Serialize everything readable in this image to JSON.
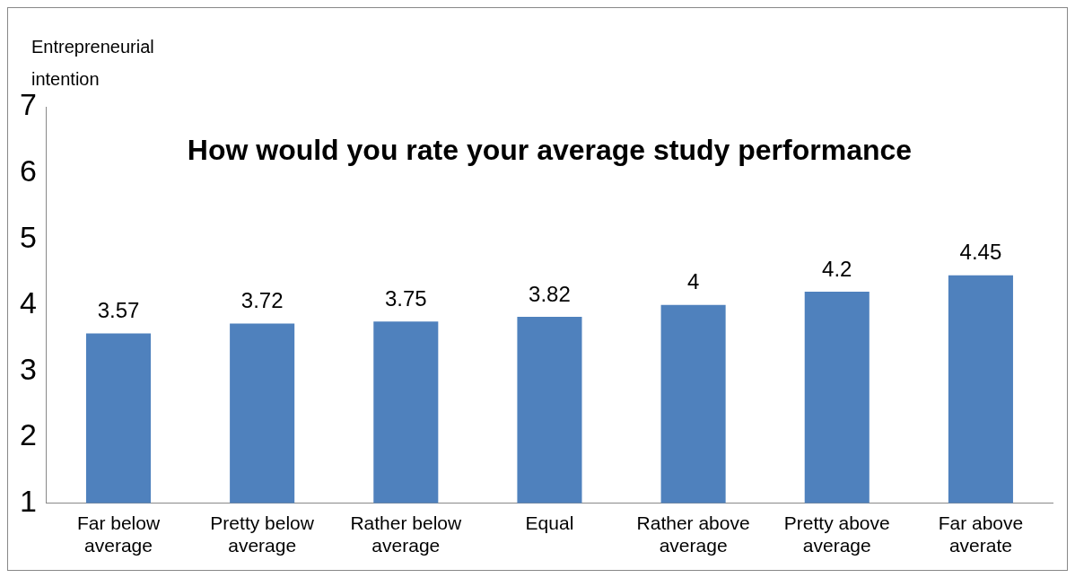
{
  "chart_data": {
    "type": "bar",
    "title": "How would you rate your average study performance",
    "ylabel": "Entrepreneurial intention",
    "categories": [
      "Far below average",
      "Pretty below average",
      "Rather below average",
      "Equal",
      "Rather above average",
      "Pretty above average",
      "Far above averate"
    ],
    "values": [
      3.57,
      3.72,
      3.75,
      3.82,
      4,
      4.2,
      4.45
    ],
    "color": "#4f81bd",
    "ylim": [
      1,
      7
    ],
    "yticks": [
      1,
      2,
      3,
      4,
      5,
      6,
      7
    ],
    "grid": false,
    "data_labels": true
  }
}
